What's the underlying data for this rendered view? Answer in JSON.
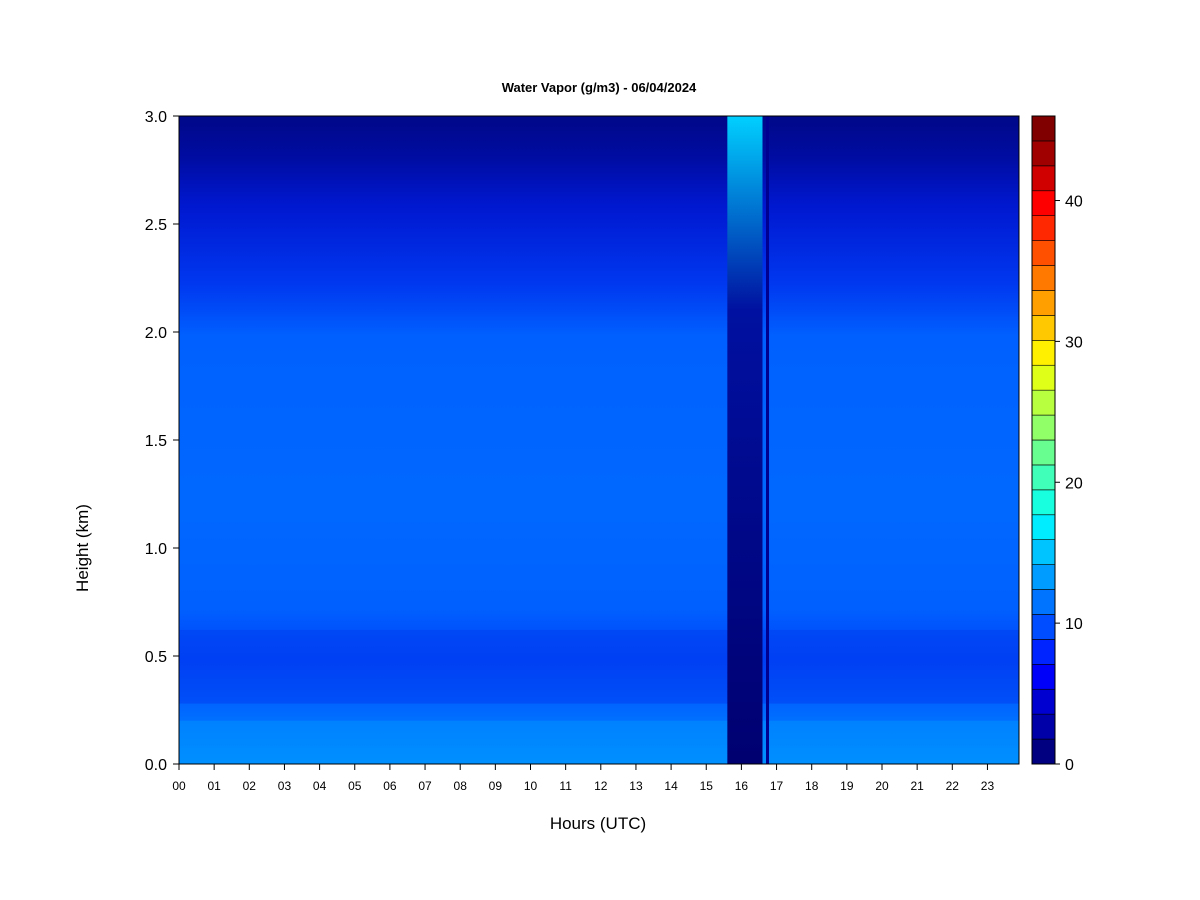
{
  "chart_data": {
    "type": "heatmap",
    "title": "Water Vapor (g/m3) - 06/04/2024",
    "xlabel": "Hours (UTC)",
    "ylabel": "Height (km)",
    "xlim": [
      0,
      24
    ],
    "ylim": [
      0,
      3.0
    ],
    "x_ticks": [
      "00",
      "01",
      "02",
      "03",
      "04",
      "05",
      "06",
      "07",
      "08",
      "09",
      "10",
      "11",
      "12",
      "13",
      "14",
      "15",
      "16",
      "17",
      "18",
      "19",
      "20",
      "21",
      "22",
      "23"
    ],
    "y_ticks": [
      "0.0",
      "0.5",
      "1.0",
      "1.5",
      "2.0",
      "2.5",
      "3.0"
    ],
    "colorbar": {
      "min": 0,
      "max": 46,
      "step": 2,
      "tick_labels": [
        "0",
        "10",
        "20",
        "30",
        "40"
      ],
      "tick_values": [
        0,
        10,
        20,
        30,
        40
      ],
      "colors": [
        "#000080",
        "#0000A8",
        "#0000D0",
        "#0000FA",
        "#0024FF",
        "#004CFF",
        "#0074FF",
        "#009CFF",
        "#00C4FF",
        "#00ECFF",
        "#18FFE0",
        "#40FFB8",
        "#68FF90",
        "#90FF68",
        "#B8FF40",
        "#E0FF18",
        "#FFF000",
        "#FFC800",
        "#FFA000",
        "#FF7800",
        "#FF5000",
        "#FF2800",
        "#FF0000",
        "#D00000",
        "#A00000",
        "#800000"
      ]
    },
    "layer_profile": {
      "height_km": [
        0.0,
        0.15,
        0.3,
        0.65,
        2.0,
        2.3,
        2.75,
        3.0
      ],
      "value_gm3": [
        13,
        12,
        11,
        10,
        11,
        9,
        7,
        5
      ]
    },
    "anomaly": {
      "x_range_hours": [
        15.6,
        16.6
      ],
      "description_value_gm3": 2
    }
  }
}
